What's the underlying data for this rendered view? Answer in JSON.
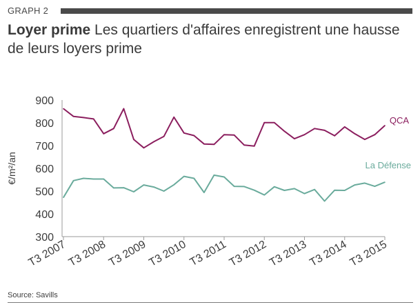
{
  "header": {
    "graph_label": "GRAPH 2",
    "title_bold": "Loyer prime",
    "title_rest": " Les quartiers d'affaires enregistrent une hausse de leurs loyers prime"
  },
  "source": "Source: Savills",
  "chart_data": {
    "type": "line",
    "title": "Loyer prime Les quartiers d'affaires enregistrent une hausse de leurs loyers prime",
    "ylabel": "€/m²/an",
    "xlabel": "",
    "ylim": [
      300,
      900
    ],
    "yticks": [
      300,
      400,
      500,
      600,
      700,
      800,
      900
    ],
    "grid": false,
    "x_tick_labels": [
      "T3 2007",
      "T3 2008",
      "T3 2009",
      "T3 2010",
      "T3 2011",
      "T3 2012",
      "T3 2013",
      "T3 2014",
      "T3 2015"
    ],
    "series": [
      {
        "name": "QCA",
        "color": "#8b1e5e",
        "values": [
          862,
          828,
          823,
          817,
          752,
          775,
          862,
          727,
          690,
          717,
          740,
          825,
          755,
          744,
          707,
          705,
          748,
          746,
          702,
          698,
          801,
          801,
          763,
          730,
          748,
          775,
          767,
          743,
          782,
          752,
          727,
          748,
          788
        ]
      },
      {
        "name": "La Défense",
        "color": "#6aab9c",
        "values": [
          472,
          546,
          556,
          553,
          553,
          514,
          515,
          497,
          527,
          518,
          500,
          528,
          565,
          556,
          494,
          570,
          562,
          521,
          520,
          504,
          483,
          519,
          503,
          511,
          489,
          507,
          456,
          504,
          503,
          527,
          535,
          521,
          539
        ]
      }
    ]
  }
}
